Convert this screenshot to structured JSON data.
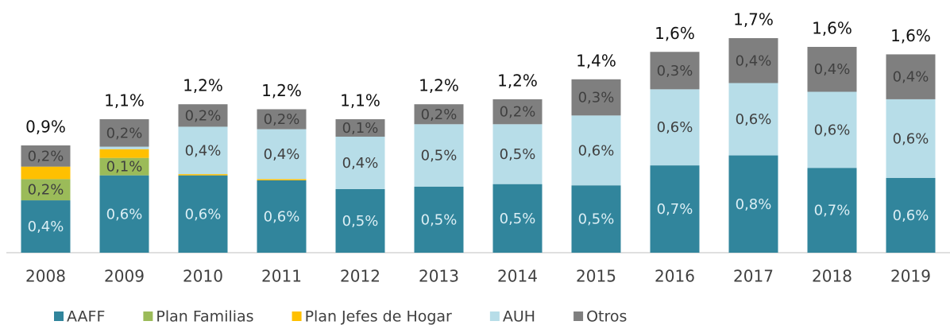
{
  "chart_data": {
    "type": "stacked_bar",
    "categories": [
      "2008",
      "2009",
      "2010",
      "2011",
      "2012",
      "2013",
      "2014",
      "2015",
      "2016",
      "2017",
      "2018",
      "2019"
    ],
    "series": [
      {
        "name": "AAFF",
        "color": "#31859c",
        "values": [
          0.42,
          0.62,
          0.62,
          0.58,
          0.51,
          0.53,
          0.55,
          0.54,
          0.7,
          0.78,
          0.68,
          0.6
        ],
        "value_labels": [
          "0,4%",
          "0,6%",
          "0,6%",
          "0,6%",
          "0,5%",
          "0,5%",
          "0,5%",
          "0,5%",
          "0,7%",
          "0,8%",
          "0,7%",
          "0,6%"
        ]
      },
      {
        "name": "Plan Familias",
        "color": "#9bbb59",
        "values": [
          0.17,
          0.14,
          null,
          null,
          null,
          null,
          null,
          null,
          null,
          null,
          null,
          null
        ],
        "value_labels": [
          "0,2%",
          "0,1%",
          null,
          null,
          null,
          null,
          null,
          null,
          null,
          null,
          null,
          null
        ]
      },
      {
        "name": "Plan Jefes de Hogar",
        "color": "#ffc000",
        "values": [
          0.1,
          0.07,
          0.01,
          0.01,
          null,
          null,
          null,
          null,
          null,
          null,
          null,
          null
        ],
        "value_labels": [
          null,
          null,
          null,
          null,
          null,
          null,
          null,
          null,
          null,
          null,
          null,
          null
        ]
      },
      {
        "name": "AUH",
        "color": "#b7dde8",
        "values": [
          null,
          0.02,
          0.38,
          0.4,
          0.42,
          0.5,
          0.48,
          0.56,
          0.61,
          0.58,
          0.61,
          0.63
        ],
        "value_labels": [
          null,
          null,
          "0,4%",
          "0,4%",
          "0,4%",
          "0,5%",
          "0,5%",
          "0,6%",
          "0,6%",
          "0,6%",
          "0,6%",
          "0,6%"
        ]
      },
      {
        "name": "Otros",
        "color": "#7f7f7f",
        "values": [
          0.17,
          0.22,
          0.18,
          0.16,
          0.14,
          0.16,
          0.2,
          0.29,
          0.3,
          0.36,
          0.36,
          0.36
        ],
        "value_labels": [
          "0,2%",
          "0,2%",
          "0,2%",
          "0,2%",
          "0,1%",
          "0,2%",
          "0,2%",
          "0,3%",
          "0,3%",
          "0,4%",
          "0,4%",
          "0,4%"
        ]
      }
    ],
    "total_labels": [
      "0,9%",
      "1,1%",
      "1,2%",
      "1,2%",
      "1,1%",
      "1,2%",
      "1,2%",
      "1,4%",
      "1,6%",
      "1,7%",
      "1,6%",
      "1,6%"
    ],
    "legend": "bottom"
  }
}
